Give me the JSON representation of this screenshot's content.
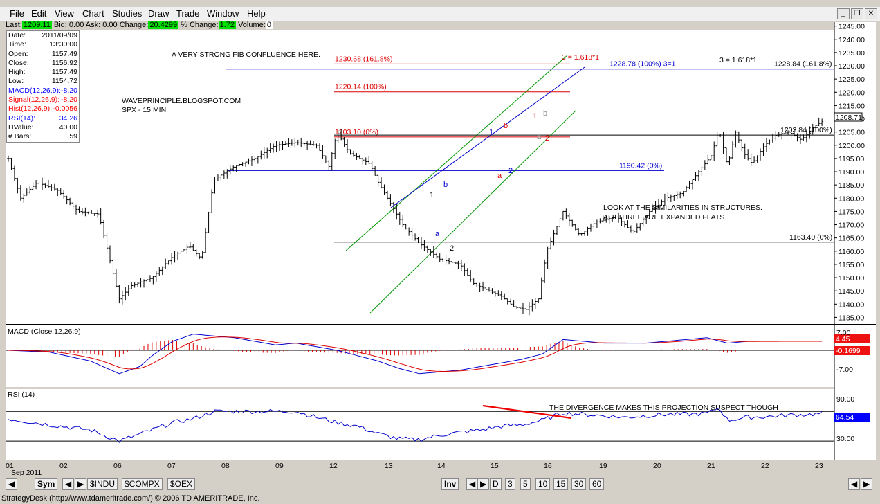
{
  "menu": [
    "File",
    "Edit",
    "View",
    "Chart",
    "Studies",
    "Draw",
    "Trade",
    "Window",
    "Help"
  ],
  "quote": {
    "last_label": "Last:",
    "last": "1209.11",
    "bid_label": "Bid:",
    "bid": "0.00",
    "ask_label": "Ask:",
    "ask": "0.00",
    "change_label": "Change:",
    "change": "20.4299",
    "pct_label": "% Change:",
    "pct": "1.72",
    "vol_label": "Volume:",
    "vol": "0"
  },
  "info": [
    [
      "Date:",
      "2011/09/09"
    ],
    [
      "Time:",
      "13:30:00"
    ],
    [
      "Open:",
      "1157.49"
    ],
    [
      "Close:",
      "1156.92"
    ],
    [
      "High:",
      "1157.49"
    ],
    [
      "Low:",
      "1154.72"
    ],
    [
      "MACD(12,26,9):",
      "-8.20"
    ],
    [
      "Signal(12,26,9):",
      "-8.20"
    ],
    [
      "Hist(12,26,9):",
      "-0.0056"
    ],
    [
      "RSI(14):",
      "34.26"
    ],
    [
      "HValue:",
      "40.00"
    ],
    [
      "# Bars:",
      "59"
    ]
  ],
  "info_colors": [
    "#000",
    "#000",
    "#000",
    "#000",
    "#000",
    "#000",
    "#0000ff",
    "#ff0000",
    "#ff0000",
    "#0000ff",
    "#000",
    "#000"
  ],
  "annotations": {
    "confluence": "A VERY STRONG FIB CONFLUENCE HERE.",
    "site": "WAVEPRINCIPLE.BLOGSPOT.COM",
    "symbol": "SPX - 15 MIN",
    "similar1": "LOOK AT THE SIMILARITIES IN STRUCTURES.",
    "similar2": "ALL THREE ARE EXPANDED FLATS.",
    "divergence": "THE DIVERGENCE MAKES THIS PROJECTION SUSPECT THOUGH"
  },
  "fib_levels": [
    {
      "label": "1230.68 (161.8%)",
      "value": 1230.68,
      "color": "#dd0000"
    },
    {
      "label": "1220.14 (100%)",
      "value": 1220.14,
      "color": "#dd0000"
    },
    {
      "label": "1203.10 (0%)",
      "value": 1203.1,
      "color": "#dd0000"
    },
    {
      "label": "1228.78 (100%)  3=1",
      "value": 1228.78,
      "color": "#0000cc"
    },
    {
      "label": "1190.42 (0%)",
      "value": 1190.42,
      "color": "#0000cc"
    },
    {
      "label": "1228.84 (161.8%)",
      "value": 1228.84,
      "color": "#000000"
    },
    {
      "label": "1203.84 (100%)",
      "value": 1203.84,
      "color": "#000000"
    },
    {
      "label": "1163.40 (0%)",
      "value": 1163.4,
      "color": "#000000"
    }
  ],
  "fib_ratio_red": "3 = 1.618*1",
  "fib_ratio_black": "3 = 1.618*1",
  "wave_labels": [
    {
      "t": "1",
      "c": "#000"
    },
    {
      "t": "b",
      "c": "#0000cc"
    },
    {
      "t": "a",
      "c": "#0000cc"
    },
    {
      "t": "2",
      "c": "#000"
    },
    {
      "t": "1",
      "c": "#0000cc"
    },
    {
      "t": "b",
      "c": "#dd0000"
    },
    {
      "t": "a",
      "c": "#dd0000"
    },
    {
      "t": "2",
      "c": "#0000cc"
    },
    {
      "t": "1",
      "c": "#dd0000"
    },
    {
      "t": "b",
      "c": "#888"
    },
    {
      "t": "a",
      "c": "#888"
    },
    {
      "t": "2",
      "c": "#dd0000"
    }
  ],
  "chart_data": {
    "type": "line",
    "title": "SPX - 15 MIN",
    "price_axis": {
      "ticks": [
        1135,
        1140,
        1145,
        1150,
        1155,
        1160,
        1165,
        1170,
        1175,
        1180,
        1185,
        1190,
        1195,
        1200,
        1205,
        1210,
        1215,
        1220,
        1225,
        1230,
        1235,
        1240,
        1245
      ],
      "ylim": [
        1132.5,
        1247
      ],
      "last_price_label": "1208.71"
    },
    "x_labels": [
      "01",
      "02",
      "06",
      "07",
      "08",
      "09",
      "12",
      "13",
      "14",
      "15",
      "16",
      "19",
      "20",
      "21",
      "22",
      "23"
    ],
    "x_month": "Sep 2011",
    "price_path": [
      [
        0,
        1195
      ],
      [
        3,
        1180
      ],
      [
        7,
        1186
      ],
      [
        12,
        1183
      ],
      [
        17,
        1175
      ],
      [
        22,
        1174
      ],
      [
        27,
        1142
      ],
      [
        30,
        1147
      ],
      [
        35,
        1150
      ],
      [
        40,
        1158
      ],
      [
        44,
        1162
      ],
      [
        47,
        1157
      ],
      [
        50,
        1187
      ],
      [
        55,
        1192
      ],
      [
        60,
        1195
      ],
      [
        65,
        1200
      ],
      [
        70,
        1201
      ],
      [
        75,
        1200
      ],
      [
        78,
        1192
      ],
      [
        80,
        1205
      ],
      [
        83,
        1197
      ],
      [
        88,
        1193
      ],
      [
        90,
        1186
      ],
      [
        93,
        1178
      ],
      [
        96,
        1170
      ],
      [
        100,
        1163
      ],
      [
        105,
        1157
      ],
      [
        110,
        1155
      ],
      [
        113,
        1148
      ],
      [
        117,
        1145
      ],
      [
        120,
        1143
      ],
      [
        123,
        1139
      ],
      [
        126,
        1138
      ],
      [
        129,
        1142
      ],
      [
        131,
        1160
      ],
      [
        135,
        1175
      ],
      [
        139,
        1166
      ],
      [
        143,
        1171
      ],
      [
        148,
        1173
      ],
      [
        152,
        1167
      ],
      [
        156,
        1175
      ],
      [
        160,
        1180
      ],
      [
        164,
        1182
      ],
      [
        168,
        1190
      ],
      [
        171,
        1196
      ],
      [
        173,
        1206
      ],
      [
        175,
        1192
      ],
      [
        177,
        1205
      ],
      [
        179,
        1197
      ],
      [
        181,
        1193
      ],
      [
        184,
        1200
      ],
      [
        187,
        1204
      ],
      [
        190,
        1205
      ],
      [
        193,
        1202
      ],
      [
        196,
        1207
      ],
      [
        198,
        1209
      ]
    ],
    "macd": {
      "name": "MACD (Close,12,26,9)",
      "last": "4.45",
      "signal_last": "-0.1699",
      "ticks": [
        7.0,
        -7.0
      ],
      "tick_labels": [
        "7.00",
        "-7.00"
      ]
    },
    "rsi": {
      "name": "RSI (14)",
      "last": "64.54",
      "ticks": [
        90,
        30
      ],
      "tick_labels": [
        "90.00",
        "30.00"
      ]
    }
  },
  "bottom_tabs": [
    "Sym",
    "$INDU",
    "$COMPX",
    "$OEX"
  ],
  "inv_label": "Inv",
  "period_tabs": [
    "D",
    "3",
    "5",
    "10",
    "15",
    "30",
    "60"
  ],
  "status": "StrategyDesk (http://www.tdameritrade.com/) © 2006 TD AMERITRADE, Inc."
}
